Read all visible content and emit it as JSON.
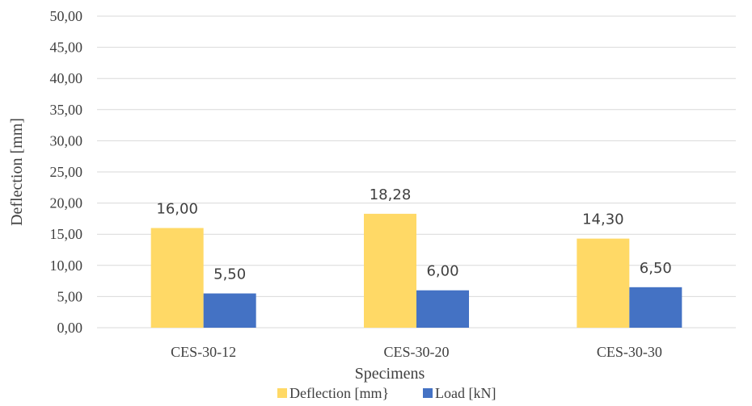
{
  "chart_data": {
    "type": "bar",
    "categories": [
      "CES-30-12",
      "CES-30-20",
      "CES-30-30"
    ],
    "series": [
      {
        "name": "Deflection [mm}",
        "values": [
          16.0,
          18.28,
          14.3
        ],
        "labels": [
          "16,00",
          "18,28",
          "14,30"
        ],
        "color": "#FFD966"
      },
      {
        "name": "Load [kN]",
        "values": [
          5.5,
          6.0,
          6.5
        ],
        "labels": [
          "5,50",
          "6,00",
          "6,50"
        ],
        "color": "#4472C4"
      }
    ],
    "xlabel": "Specimens",
    "ylabel": "Deflection [mm]",
    "ylim": [
      0,
      50
    ],
    "yticks": [
      0,
      5,
      10,
      15,
      20,
      25,
      30,
      35,
      40,
      45,
      50
    ],
    "ytick_labels": [
      "0,00",
      "5,00",
      "10,00",
      "15,00",
      "20,00",
      "25,00",
      "30,00",
      "35,00",
      "40,00",
      "45,00",
      "50,00"
    ],
    "grid": true,
    "legend_position": "bottom"
  }
}
